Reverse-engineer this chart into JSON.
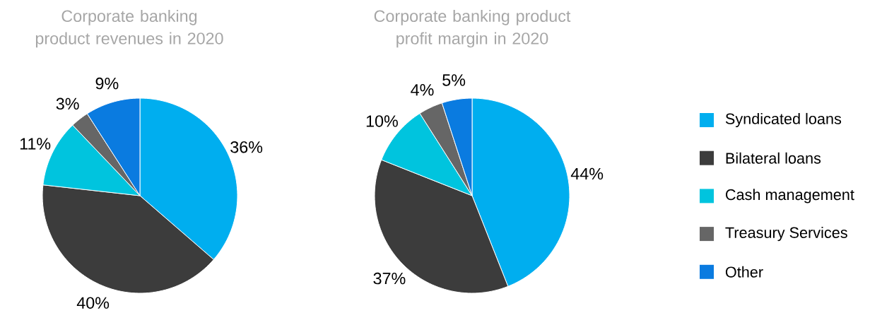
{
  "chart_data": [
    {
      "type": "pie",
      "title": "Corporate banking product revenues in 2020",
      "categories": [
        null,
        null,
        null,
        null,
        null
      ],
      "values": [
        36,
        40,
        11,
        3,
        9
      ],
      "value_labels": [
        "36%",
        "40%",
        "11%",
        "3%",
        "9%"
      ],
      "colors": [
        "#00aeef",
        "#3c3c3c",
        "#00c4de",
        "#666666",
        "#0a7be0"
      ],
      "legend": false
    },
    {
      "type": "pie",
      "title": "Corporate banking product profit margin in 2020",
      "categories": [
        "Syndicated loans",
        "Bilateral loans",
        "Cash management",
        "Treasury Services",
        "Other"
      ],
      "values": [
        44,
        37,
        10,
        4,
        5
      ],
      "value_labels": [
        "44%",
        "37%",
        "10%",
        "4%",
        "5%"
      ],
      "colors": [
        "#00aeef",
        "#3c3c3c",
        "#00c4de",
        "#666666",
        "#0a7be0"
      ],
      "legend": "right"
    }
  ]
}
